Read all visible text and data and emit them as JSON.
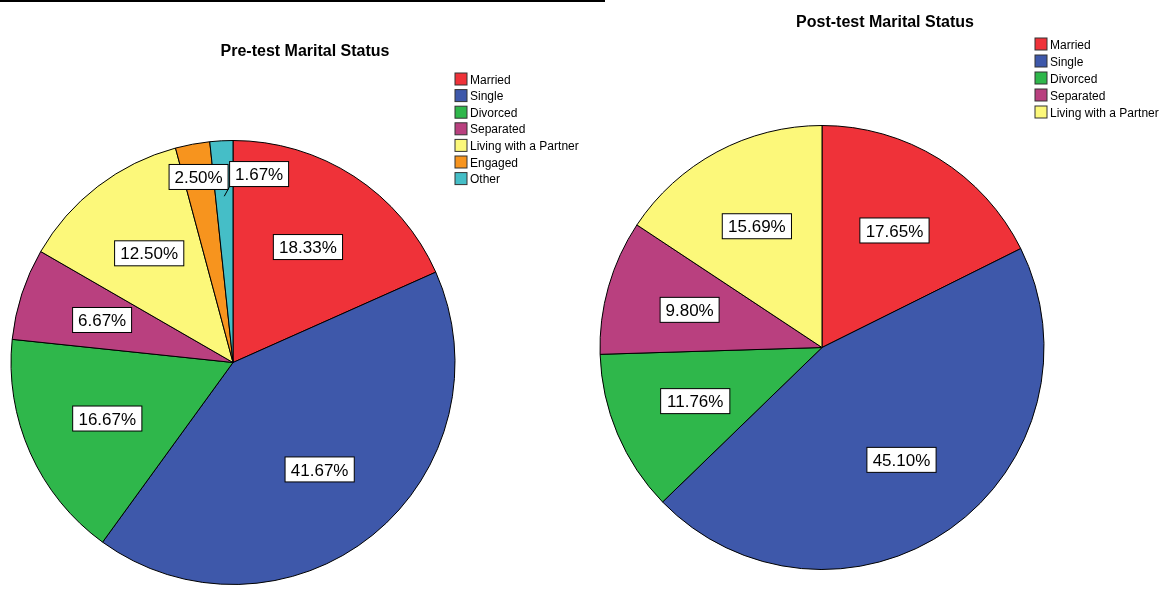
{
  "chart_data": [
    {
      "type": "pie",
      "title": "Pre-test Marital Status",
      "categories": [
        "Married",
        "Single",
        "Divorced",
        "Separated",
        "Living with a Partner",
        "Engaged",
        "Other"
      ],
      "values": [
        18.33,
        41.67,
        16.67,
        6.67,
        12.5,
        2.5,
        1.67
      ],
      "colors": [
        "#ef3239",
        "#3e58aa",
        "#2fb74b",
        "#b9407f",
        "#fcf87a",
        "#f7941e",
        "#45bec7"
      ],
      "value_labels": [
        "18.33%",
        "41.67%",
        "16.67%",
        "6.67%",
        "12.50%",
        "2.50%",
        "1.67%"
      ],
      "legend": "top right"
    },
    {
      "type": "pie",
      "title": "Post-test Marital Status",
      "categories": [
        "Married",
        "Single",
        "Divorced",
        "Separated",
        "Living with a Partner"
      ],
      "values": [
        17.65,
        45.1,
        11.76,
        9.8,
        15.69
      ],
      "colors": [
        "#ef3239",
        "#3e58aa",
        "#2fb74b",
        "#b9407f",
        "#fcf87a"
      ],
      "value_labels": [
        "17.65%",
        "45.10%",
        "11.76%",
        "9.80%",
        "15.69%"
      ],
      "legend": "top right"
    }
  ]
}
